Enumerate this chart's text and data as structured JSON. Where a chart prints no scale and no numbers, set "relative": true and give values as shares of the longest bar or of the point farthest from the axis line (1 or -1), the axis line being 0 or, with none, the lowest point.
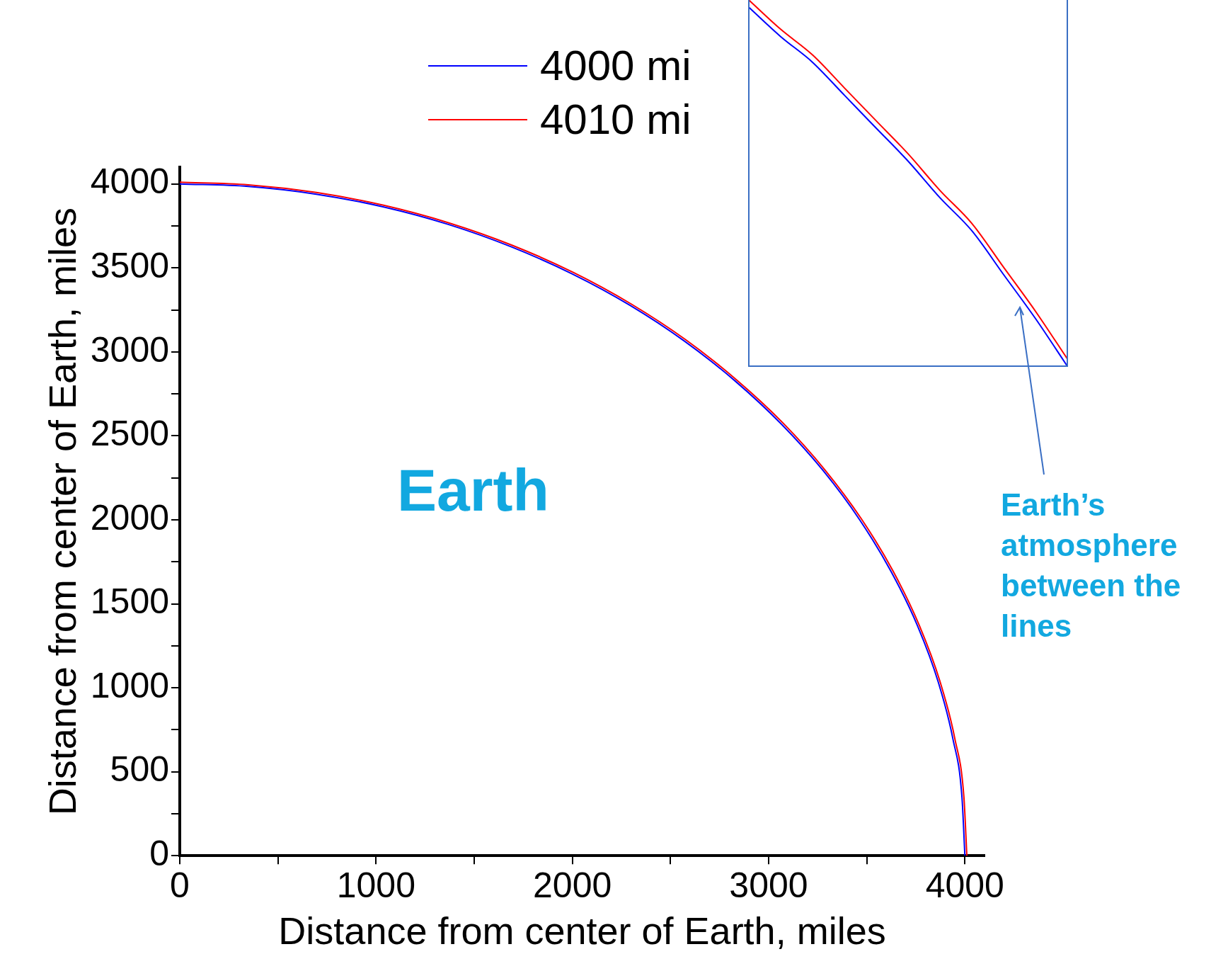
{
  "chart_data": [
    {
      "type": "line",
      "xlabel": "Distance from center of Earth, miles",
      "ylabel": "Distance from center of Earth, miles",
      "xlim": [
        0,
        4100
      ],
      "ylim": [
        0,
        4100
      ],
      "xticks": [
        0,
        {
          "value": 500,
          "label": null
        },
        1000,
        {
          "value": 1500,
          "label": null
        },
        2000,
        {
          "value": 2500,
          "label": null
        },
        3000,
        {
          "value": 3500,
          "label": null
        },
        4000
      ],
      "yticks": [
        0,
        {
          "value": 250,
          "label": null
        },
        500,
        {
          "value": 750,
          "label": null
        },
        1000,
        {
          "value": 1250,
          "label": null
        },
        1500,
        {
          "value": 1750,
          "label": null
        },
        2000,
        {
          "value": 2250,
          "label": null
        },
        2500,
        {
          "value": 2750,
          "label": null
        },
        3000,
        {
          "value": 3250,
          "label": null
        },
        3500,
        {
          "value": 3750,
          "label": null
        },
        4000
      ],
      "grid": false,
      "legend": "top",
      "marker": "none",
      "line_style": "solid",
      "series": [
        {
          "name": "4000 mi",
          "color": "#0000ff",
          "x": [
            0,
            349,
            695,
            1035,
            1368,
            1690,
            2000,
            2294,
            2571,
            2828,
            3064,
            3277,
            3464,
            3625,
            3759,
            3864,
            3939,
            3985,
            4000
          ],
          "values": [
            4000,
            3985,
            3939,
            3864,
            3759,
            3625,
            3464,
            3277,
            3064,
            2828,
            2571,
            2294,
            2000,
            1690,
            1368,
            1035,
            695,
            349,
            0
          ]
        },
        {
          "name": "4010 mi",
          "color": "#ff0000",
          "x": [
            0,
            349,
            696,
            1038,
            1371,
            1695,
            2005,
            2300,
            2578,
            2835,
            3072,
            3285,
            3473,
            3634,
            3768,
            3873,
            3949,
            3995,
            4010
          ],
          "values": [
            4010,
            3995,
            3949,
            3873,
            3768,
            3634,
            3473,
            3285,
            3072,
            2835,
            2578,
            2300,
            2005,
            1695,
            1371,
            1038,
            696,
            349,
            0
          ]
        }
      ],
      "annotations": [
        "Earth",
        "Earth’s atmosphere between the lines"
      ]
    },
    {
      "type": "line",
      "relative": true,
      "categories": [
        null,
        null,
        null,
        null,
        null,
        null,
        null,
        null,
        null,
        null,
        null
      ],
      "series": [
        {
          "color": "#0000ff",
          "values": [
            0.98,
            0.9,
            0.83,
            0.74,
            0.65,
            0.56,
            0.46,
            0.37,
            0.25,
            0.13,
            0
          ]
        },
        {
          "color": "#ff0000",
          "values": [
            1,
            0.92,
            0.85,
            0.76,
            0.67,
            0.58,
            0.48,
            0.39,
            0.27,
            0.15,
            0.02
          ]
        }
      ]
    }
  ]
}
